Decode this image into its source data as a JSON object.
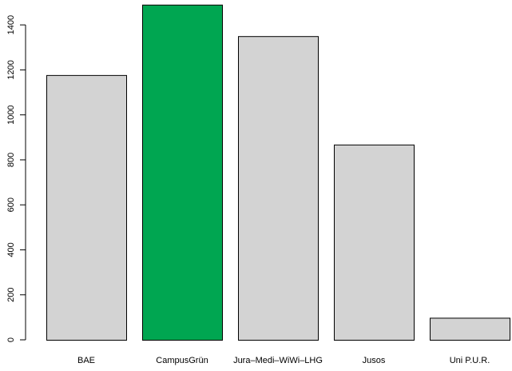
{
  "chart_data": {
    "type": "bar",
    "categories": [
      "BAE",
      "CampusGrün",
      "Jura–Medi–WiWi–LHG",
      "Jusos",
      "Uni P.U.R."
    ],
    "values": [
      1177,
      1490,
      1350,
      868,
      98
    ],
    "colors": [
      "#d3d3d3",
      "#00a651",
      "#d3d3d3",
      "#d3d3d3",
      "#d3d3d3"
    ],
    "ylim": [
      0,
      1500
    ],
    "yticks": [
      0,
      200,
      400,
      600,
      800,
      1000,
      1200,
      1400
    ],
    "grid": false
  }
}
